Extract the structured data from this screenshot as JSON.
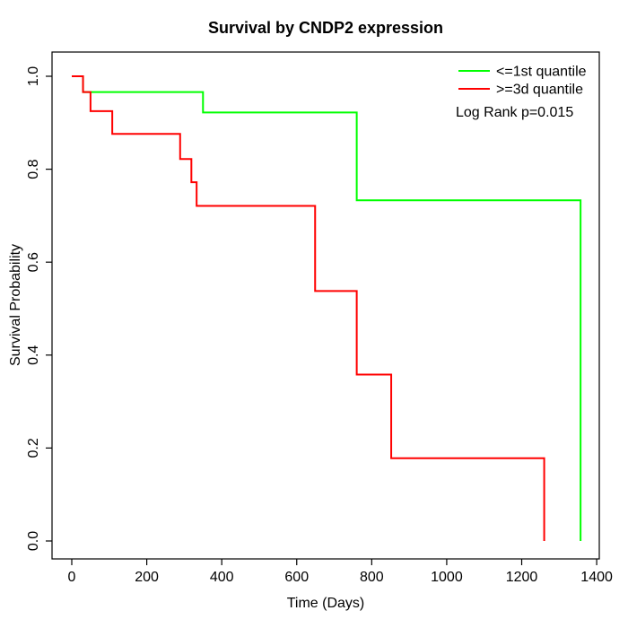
{
  "title": "Survival by CNDP2 expression",
  "chart_data": {
    "type": "line",
    "subtype": "kaplan-meier-step-curves",
    "title": "Survival by CNDP2 expression",
    "xlabel": "Time (Days)",
    "ylabel": "Survival Probability",
    "xlim": [
      0,
      1400
    ],
    "ylim": [
      0.0,
      1.0
    ],
    "x_ticks": [
      0,
      200,
      400,
      600,
      800,
      1000,
      1200,
      1400
    ],
    "x_tick_labels": [
      "0",
      "200",
      "400",
      "600",
      "800",
      "1000",
      "1200",
      "1400"
    ],
    "y_ticks": [
      0.0,
      0.2,
      0.4,
      0.6,
      0.8,
      1.0
    ],
    "y_tick_labels": [
      "0.0",
      "0.2",
      "0.4",
      "0.6",
      "0.8",
      "1.0"
    ],
    "grid": false,
    "legend_position": "top-right",
    "legend_border": false,
    "series": [
      {
        "name": "<=1st quantile",
        "color": "#00ff00",
        "steps": [
          [
            0,
            1.0
          ],
          [
            30,
            0.966
          ],
          [
            350,
            0.922
          ],
          [
            760,
            0.733
          ],
          [
            1357,
            0.0
          ]
        ]
      },
      {
        "name": ">=3d quantile",
        "color": "#ff0000",
        "steps": [
          [
            0,
            1.0
          ],
          [
            30,
            0.966
          ],
          [
            50,
            0.925
          ],
          [
            108,
            0.876
          ],
          [
            289,
            0.822
          ],
          [
            319,
            0.772
          ],
          [
            333,
            0.721
          ],
          [
            649,
            0.538
          ],
          [
            760,
            0.358
          ],
          [
            852,
            0.178
          ],
          [
            1260,
            0.0
          ]
        ]
      }
    ],
    "annotations": [
      {
        "text": "Log Rank p=0.015"
      }
    ]
  }
}
